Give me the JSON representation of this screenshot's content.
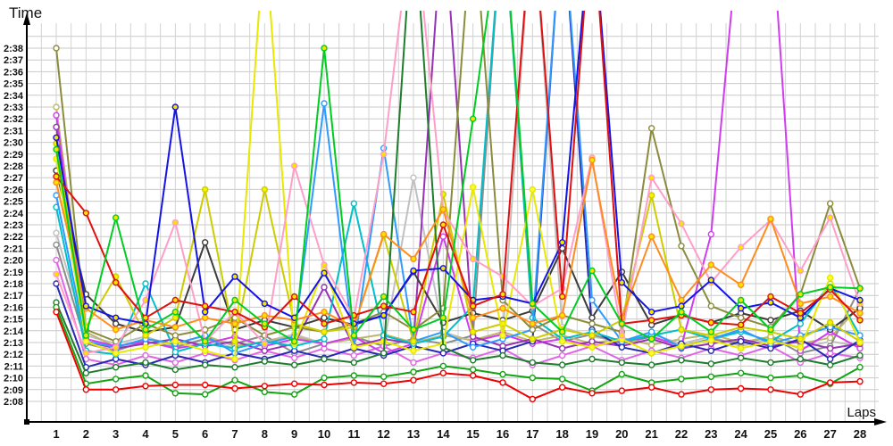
{
  "chart_data": {
    "type": "line",
    "title": "",
    "xlabel": "Laps",
    "ylabel": "Time",
    "x_categories": [
      "1",
      "2",
      "3",
      "4",
      "5",
      "6",
      "7",
      "8",
      "9",
      "10",
      "11",
      "12",
      "13",
      "14",
      "15",
      "16",
      "17",
      "18",
      "19",
      "20",
      "21",
      "22",
      "23",
      "24",
      "25",
      "26",
      "27",
      "28"
    ],
    "ytick_labels": [
      "2:08",
      "2:09",
      "2:10",
      "2:11",
      "2:12",
      "2:13",
      "2:14",
      "2:15",
      "2:16",
      "2:17",
      "2:18",
      "2:19",
      "2:20",
      "2:21",
      "2:22",
      "2:23",
      "2:24",
      "2:25",
      "2:26",
      "2:27",
      "2:28",
      "2:29",
      "2:30",
      "2:31",
      "2:32",
      "2:33",
      "2:34",
      "2:35",
      "2:36",
      "2:37",
      "2:38"
    ],
    "ylim": [
      "2:08",
      "2:38"
    ],
    "grid": true,
    "legend_position": "none",
    "value_encoding": "lap time in seconds after 2:00 (e.g. 129.5 = 2:09.5); values near 170 are pit/incident laps that run off the top of the visible scale; all values estimated from the plot",
    "series": [
      {
        "name": "silver",
        "color": "#C0C0C0",
        "marker_fill": "#ffffff",
        "values": [
          142.3,
          133.6,
          132.9,
          133.5,
          132.7,
          133.3,
          132.5,
          133.1,
          133.7,
          132.9,
          133.5,
          132.7,
          147.0,
          133.9,
          133.1,
          133.7,
          170,
          134.3,
          133.5,
          133.1,
          133.7,
          132.9,
          133.5,
          132.7,
          133.3,
          132.5,
          133.1,
          132.7
        ]
      },
      {
        "name": "gray",
        "color": "#8C8C8C",
        "marker_fill": "#ffffff",
        "values": [
          141.3,
          132.9,
          132.3,
          133.1,
          132.6,
          133.3,
          132.9,
          133.6,
          132.1,
          132.9,
          133.5,
          132.7,
          133.3,
          132.9,
          133.6,
          170,
          134.6,
          133.1,
          133.7,
          132.9,
          133.5,
          132.7,
          133.3,
          132.9,
          133.5,
          132.1,
          132.7,
          137.6
        ]
      },
      {
        "name": "pale-khaki",
        "color": "#BDB76B",
        "marker_fill": "#ffffff",
        "values": [
          153.0,
          133.9,
          132.6,
          133.3,
          132.9,
          133.6,
          132.7,
          133.1,
          133.5,
          132.9,
          133.3,
          133.7,
          133.0,
          133.6,
          133.2,
          133.9,
          133.1,
          133.6,
          132.9,
          133.4,
          132.8,
          133.3,
          133.7,
          133.0,
          133.5,
          132.9,
          133.4,
          136.1
        ]
      },
      {
        "name": "violet",
        "color": "#E066E6",
        "marker_fill": "#ffffff",
        "values": [
          140.0,
          131.6,
          131.1,
          131.9,
          131.3,
          132.1,
          131.5,
          132.3,
          131.7,
          132.5,
          131.9,
          132.7,
          131.3,
          132.1,
          131.7,
          132.5,
          131.1,
          131.9,
          132.7,
          131.5,
          132.3,
          131.7,
          132.5,
          131.9,
          132.7,
          131.3,
          132.1,
          131.7
        ]
      },
      {
        "name": "magenta",
        "color": "#D23CF0",
        "marker_fill": "#ffffff",
        "values": [
          152.3,
          133.3,
          132.7,
          133.1,
          132.5,
          132.9,
          133.5,
          132.7,
          133.3,
          132.9,
          133.5,
          132.1,
          132.9,
          142.0,
          133.1,
          133.7,
          132.9,
          133.3,
          132.7,
          133.1,
          133.5,
          132.7,
          142.2,
          170,
          170,
          132.3,
          133.9,
          132.5
        ]
      },
      {
        "name": "purple",
        "color": "#9632B4",
        "marker_fill": "#ffffff",
        "values": [
          151.3,
          133.1,
          132.5,
          132.9,
          133.3,
          132.7,
          133.1,
          132.3,
          132.9,
          137.7,
          132.7,
          133.3,
          132.9,
          170,
          133.5,
          132.7,
          133.3,
          132.5,
          133.1,
          132.7,
          133.3,
          132.5,
          132.9,
          133.3,
          132.7,
          133.1,
          132.5,
          132.9
        ]
      },
      {
        "name": "navy",
        "color": "#2828B4",
        "marker_fill": "#ffffff",
        "values": [
          138.0,
          130.9,
          131.6,
          131.1,
          131.9,
          131.3,
          132.1,
          131.6,
          132.3,
          131.7,
          132.5,
          131.9,
          132.7,
          132.1,
          132.9,
          132.3,
          133.1,
          170,
          134.1,
          132.6,
          132.1,
          132.9,
          132.3,
          133.1,
          132.5,
          133.3,
          131.6,
          133.2
        ]
      },
      {
        "name": "dark-gray",
        "color": "#3C3C3C",
        "marker_fill": "#ffffff",
        "values": [
          147.6,
          137.1,
          134.6,
          133.9,
          134.3,
          141.5,
          134.1,
          134.9,
          134.3,
          135.1,
          134.5,
          135.3,
          139.0,
          134.7,
          135.5,
          134.9,
          135.7,
          141.0,
          135.1,
          139.0,
          134.5,
          135.3,
          134.7,
          135.5,
          134.9,
          135.7,
          134.1,
          135.9
        ]
      },
      {
        "name": "cyan",
        "color": "#00BFC8",
        "marker_fill": "#ffffff",
        "values": [
          144.5,
          132.3,
          132.0,
          138.0,
          132.2,
          132.9,
          132.5,
          133.1,
          132.7,
          133.3,
          144.8,
          133.6,
          132.9,
          133.5,
          136.1,
          170,
          135.1,
          133.3,
          133.9,
          133.1,
          133.6,
          134.1,
          133.3,
          133.9,
          133.1,
          134.6,
          138.0,
          133.6
        ]
      },
      {
        "name": "sky-blue",
        "color": "#2E9BFF",
        "marker_fill": "#ffffff",
        "values": [
          145.5,
          133.1,
          132.6,
          133.3,
          132.9,
          133.6,
          132.1,
          132.9,
          133.5,
          153.3,
          132.6,
          149.5,
          133.1,
          133.9,
          132.6,
          133.3,
          134.1,
          170,
          136.6,
          133.1,
          133.9,
          132.6,
          133.3,
          134.1,
          132.9,
          133.6,
          134.3,
          133.6
        ]
      },
      {
        "name": "olive",
        "color": "#8B8B3C",
        "marker_fill": "#ffffff",
        "values": [
          158.0,
          134.1,
          133.1,
          134.6,
          133.6,
          134.1,
          135.1,
          133.6,
          134.3,
          133.9,
          134.6,
          135.6,
          134.1,
          135.9,
          170,
          136.6,
          134.1,
          135.3,
          134.6,
          133.9,
          151.2,
          141.2,
          136.1,
          135.1,
          134.3,
          137.1,
          144.8,
          137.6
        ]
      },
      {
        "name": "dark-yellow",
        "color": "#CCCC00",
        "marker_fill": "#f4f400",
        "values": [
          149.9,
          134.3,
          138.6,
          133.6,
          135.1,
          146.0,
          133.1,
          146.0,
          134.6,
          133.9,
          134.3,
          142.1,
          133.1,
          145.6,
          133.9,
          134.6,
          133.3,
          134.1,
          133.6,
          134.9,
          145.5,
          134.1,
          133.6,
          134.3,
          133.9,
          133.3,
          134.7,
          133.1
        ]
      },
      {
        "name": "yellow",
        "color": "#E8E800",
        "marker_fill": "#fbfb30",
        "values": [
          148.6,
          133.1,
          132.1,
          132.6,
          133.1,
          132.3,
          131.6,
          168.0,
          132.9,
          139.3,
          132.6,
          133.1,
          132.3,
          132.9,
          146.2,
          133.6,
          146.0,
          133.1,
          132.6,
          133.3,
          132.1,
          132.7,
          133.2,
          132.5,
          133.1,
          132.6,
          138.5,
          133.0
        ]
      },
      {
        "name": "dark-green",
        "color": "#1E7D2D",
        "marker_fill": "#ffffff",
        "values": [
          136.4,
          130.4,
          130.9,
          131.3,
          130.7,
          131.1,
          130.9,
          131.4,
          131.1,
          131.6,
          131.3,
          132.1,
          170,
          132.6,
          131.5,
          131.9,
          131.3,
          131.1,
          131.6,
          131.3,
          131.1,
          131.5,
          131.2,
          131.7,
          131.3,
          131.6,
          131.1,
          131.9
        ]
      },
      {
        "name": "pink",
        "color": "#FF9EC8",
        "marker_fill": "#f4e400",
        "values": [
          138.8,
          132.1,
          132.6,
          136.6,
          143.2,
          133.1,
          135.6,
          132.9,
          148.0,
          139.6,
          135.1,
          149.0,
          170,
          144.2,
          140.1,
          138.6,
          136.1,
          137.6,
          148.7,
          133.6,
          147.0,
          143.1,
          138.1,
          141.1,
          143.4,
          139.1,
          143.6,
          136.3
        ]
      },
      {
        "name": "orange",
        "color": "#FF8C1E",
        "marker_fill": "#f4e400",
        "values": [
          146.6,
          135.9,
          134.1,
          134.9,
          134.3,
          135.1,
          134.6,
          135.3,
          134.9,
          135.6,
          134.3,
          142.2,
          140.1,
          144.3,
          135.1,
          135.9,
          134.6,
          135.3,
          148.5,
          135.1,
          142.0,
          136.6,
          139.6,
          137.9,
          143.5,
          136.3,
          136.9,
          135.5
        ]
      },
      {
        "name": "blue",
        "color": "#1414E6",
        "marker_fill": "#f4e400",
        "values": [
          150.4,
          136.1,
          135.1,
          134.6,
          153.0,
          135.6,
          138.6,
          136.3,
          135.1,
          138.9,
          134.6,
          135.3,
          139.1,
          139.3,
          136.6,
          136.9,
          136.3,
          141.5,
          170,
          138.1,
          135.6,
          136.1,
          138.3,
          135.9,
          136.4,
          135.1,
          137.6,
          136.6
        ]
      },
      {
        "name": "dark-red",
        "color": "#E01010",
        "marker_fill": "#f4e400",
        "values": [
          147.1,
          144.0,
          138.1,
          135.1,
          136.6,
          136.1,
          135.6,
          134.3,
          136.9,
          134.6,
          135.3,
          136.1,
          135.6,
          143.0,
          136.1,
          137.1,
          170,
          136.9,
          170,
          134.6,
          134.9,
          135.3,
          134.7,
          134.5,
          136.9,
          135.5,
          137.5,
          134.9
        ]
      },
      {
        "name": "bottom-green",
        "color": "#12A412",
        "marker_fill": "#ffffff",
        "values": [
          136.0,
          129.5,
          129.9,
          130.2,
          128.7,
          128.6,
          129.8,
          128.8,
          128.6,
          130.0,
          130.2,
          130.1,
          130.5,
          131.0,
          130.7,
          130.3,
          130.0,
          129.9,
          128.9,
          130.3,
          129.6,
          129.9,
          130.1,
          130.4,
          130.0,
          130.2,
          129.5,
          130.9
        ]
      },
      {
        "name": "green",
        "color": "#00CC22",
        "marker_fill": "#f4e400",
        "values": [
          149.4,
          133.6,
          143.6,
          134.1,
          135.6,
          133.1,
          136.6,
          134.6,
          133.1,
          158.0,
          133.6,
          136.9,
          134.1,
          135.1,
          152.0,
          170,
          136.3,
          133.9,
          139.1,
          134.6,
          133.3,
          135.6,
          133.9,
          136.6,
          134.1,
          137.1,
          137.7,
          137.6
        ]
      },
      {
        "name": "red",
        "color": "#EE0000",
        "marker_fill": "#ffffff",
        "values": [
          135.6,
          129.0,
          129.0,
          129.3,
          129.4,
          129.4,
          129.1,
          129.3,
          129.5,
          129.4,
          129.6,
          129.5,
          129.8,
          130.4,
          130.2,
          129.6,
          128.2,
          129.2,
          128.7,
          128.9,
          129.2,
          128.6,
          129.0,
          129.1,
          129.0,
          128.6,
          129.6,
          129.7
        ]
      }
    ]
  },
  "labels": {
    "y_axis_title": "Time",
    "x_axis_title": "Laps"
  },
  "colors": {
    "grid": "#c9c9c9",
    "grid_vertical": "#d2d2d2",
    "axis": "#000000",
    "text": "#111111",
    "background": "#ffffff"
  }
}
